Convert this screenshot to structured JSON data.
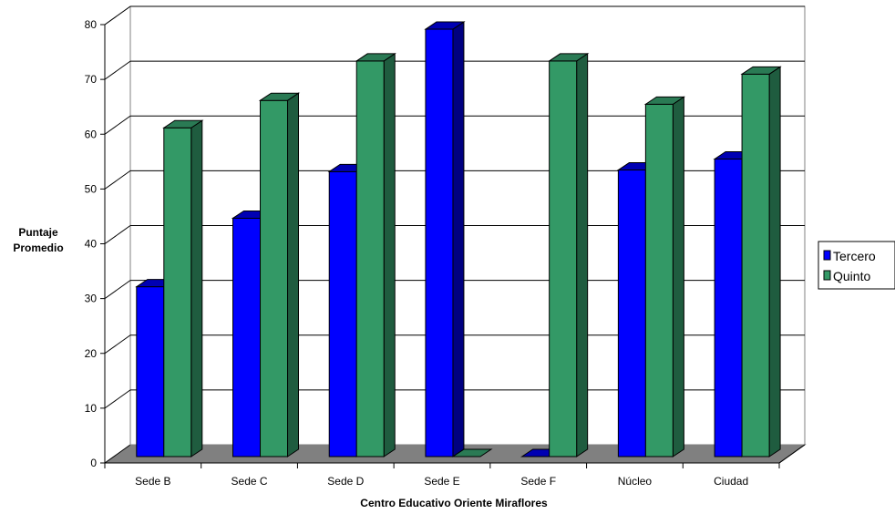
{
  "chart_data": {
    "type": "bar",
    "categories": [
      "Sede B",
      "Sede C",
      "Sede D",
      "Sede E",
      "Sede F",
      "Núcleo",
      "Ciudad"
    ],
    "series": [
      {
        "name": "Tercero",
        "values": [
          31,
          43.5,
          52,
          78,
          0,
          52.3,
          54.3
        ]
      },
      {
        "name": "Quinto",
        "values": [
          60,
          65,
          72.2,
          0,
          72.2,
          64.3,
          69.8
        ]
      }
    ],
    "title": "",
    "xlabel": "Centro Educativo Oriente Miraflores",
    "ylabel_lines": [
      "Puntaje",
      "Promedio"
    ],
    "ylim": [
      0,
      80
    ],
    "yticks": [
      0,
      10,
      20,
      30,
      40,
      50,
      60,
      70,
      80
    ],
    "grid": true,
    "legend_position": "right",
    "colors": {
      "Tercero": {
        "front": "#0000ff",
        "top": "#0000b3",
        "side": "#000080"
      },
      "Quinto": {
        "front": "#339966",
        "top": "#2a7a54",
        "side": "#1f5c3f"
      },
      "floor": "#808080",
      "grid": "#000000"
    }
  }
}
